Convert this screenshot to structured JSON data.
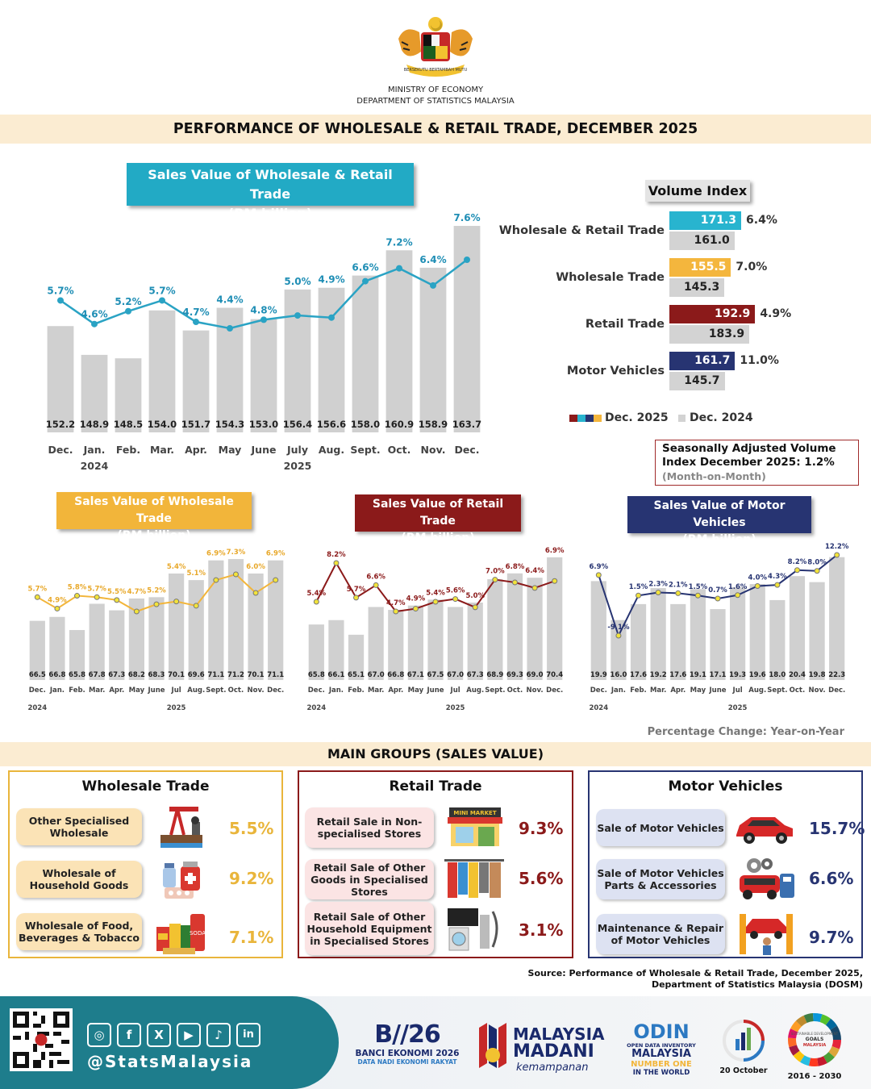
{
  "header": {
    "ministry_line1": "MINISTRY OF ECONOMY",
    "ministry_line2": "DEPARTMENT OF STATISTICS MALAYSIA",
    "title": "PERFORMANCE OF WHOLESALE & RETAIL TRADE, DECEMBER 2025",
    "crest": "malaysia-coat-of-arms"
  },
  "main_chart": {
    "title_line1": "Sales Value of Wholesale & Retail Trade",
    "title_line2": "(RM billion)",
    "year_labels": [
      {
        "label": "2024",
        "under": 1
      },
      {
        "label": "2025",
        "under": 7
      }
    ]
  },
  "small_charts": {
    "wholesale": {
      "title_line1": "Sales Value of Wholesale Trade",
      "title_line2": "(RM billion)"
    },
    "retail": {
      "title_line1": "Sales Value of Retail Trade",
      "title_line2": "(RM billion)"
    },
    "motor": {
      "title_line1": "Sales Value of Motor Vehicles",
      "title_line2": "(RM billion)"
    },
    "year_2024": "2024",
    "year_2025": "2025"
  },
  "chart_data": [
    {
      "type": "bar",
      "name": "main",
      "categories": [
        "Dec.",
        "Jan.",
        "Feb.",
        "Mar.",
        "Apr.",
        "May",
        "June",
        "July",
        "Aug.",
        "Sept.",
        "Oct.",
        "Nov.",
        "Dec."
      ],
      "values": [
        152.2,
        148.9,
        148.5,
        154.0,
        151.7,
        154.3,
        153.0,
        156.4,
        156.6,
        158.0,
        160.9,
        158.9,
        163.7
      ],
      "values_label": [
        "152.2",
        "148.9",
        "148.5",
        "154.0",
        "151.7",
        "154.3",
        "153.0",
        "156.4",
        "156.6",
        "158.0",
        "160.9",
        "158.9",
        "163.7"
      ],
      "line": {
        "values": [
          5.7,
          4.6,
          5.2,
          5.7,
          4.7,
          4.4,
          4.8,
          5.0,
          4.9,
          6.6,
          7.2,
          6.4,
          7.6
        ],
        "labels": [
          "5.7%",
          "4.6%",
          "5.2%",
          "5.7%",
          "4.7%",
          "4.4%",
          "4.8%",
          "5.0%",
          "4.9%",
          "6.6%",
          "7.2%",
          "6.4%",
          "7.6%"
        ]
      },
      "ylim": [
        140,
        165
      ],
      "colors": {
        "bar": "#d0d0d0",
        "line": "#2aa3c4",
        "label": "#1f8eb5"
      }
    },
    {
      "type": "bar",
      "name": "wholesale",
      "categories": [
        "Dec.",
        "Jan.",
        "Feb.",
        "Mar.",
        "Apr.",
        "May",
        "June",
        "Jul",
        "Aug.",
        "Sept.",
        "Oct.",
        "Nov.",
        "Dec."
      ],
      "values": [
        66.5,
        66.8,
        65.8,
        67.8,
        67.3,
        68.2,
        68.3,
        70.1,
        69.6,
        71.1,
        71.2,
        70.1,
        71.1
      ],
      "values_label": [
        "66.5",
        "66.8",
        "65.8",
        "67.8",
        "67.3",
        "68.2",
        "68.3",
        "70.1",
        "69.6",
        "71.1",
        "71.2",
        "70.1",
        "71.1"
      ],
      "line": {
        "values": [
          5.7,
          4.9,
          5.8,
          5.7,
          5.5,
          4.7,
          5.2,
          5.4,
          5.1,
          6.9,
          7.3,
          6.0,
          6.9
        ],
        "labels": [
          "5.7%",
          "4.9%",
          "5.8%",
          "5.7%",
          "5.5%",
          "4.7%",
          "5.2%",
          "5.4%",
          "5.1%",
          "6.9%",
          "7.3%",
          "6.0%",
          "6.9%"
        ]
      },
      "ylim": [
        62,
        72
      ],
      "colors": {
        "bar": "#d0d0d0",
        "line": "#f2b53a",
        "label": "#e8a82a"
      }
    },
    {
      "type": "bar",
      "name": "retail",
      "categories": [
        "Dec.",
        "Jan.",
        "Feb.",
        "Mar.",
        "Apr.",
        "May",
        "June",
        "Jul",
        "Aug.",
        "Sept.",
        "Oct.",
        "Nov.",
        "Dec."
      ],
      "values": [
        65.8,
        66.1,
        65.1,
        67.0,
        66.8,
        67.1,
        67.5,
        67.0,
        67.3,
        68.9,
        69.3,
        69.0,
        70.4
      ],
      "values_label": [
        "65.8",
        "66.1",
        "65.1",
        "67.0",
        "66.8",
        "67.1",
        "67.5",
        "67.0",
        "67.3",
        "68.9",
        "69.3",
        "69.0",
        "70.4"
      ],
      "line": {
        "values": [
          5.4,
          8.2,
          5.7,
          6.6,
          4.7,
          4.9,
          5.4,
          5.6,
          5.0,
          7.0,
          6.8,
          6.4,
          6.9
        ],
        "labels": [
          "5.4%",
          "8.2%",
          "5.7%",
          "6.6%",
          "4.7%",
          "4.9%",
          "5.4%",
          "5.6%",
          "5.0%",
          "7.0%",
          "6.8%",
          "6.4%",
          "6.9%"
        ]
      },
      "ylim": [
        62,
        71
      ],
      "colors": {
        "bar": "#d0d0d0",
        "line": "#8b1a1a",
        "label": "#8b1a1a"
      }
    },
    {
      "type": "bar",
      "name": "motor",
      "categories": [
        "Dec.",
        "Jan.",
        "Feb.",
        "Mar.",
        "Apr.",
        "May",
        "June",
        "Jul",
        "Aug.",
        "Sept.",
        "Oct.",
        "Nov.",
        "Dec."
      ],
      "values": [
        19.9,
        16.0,
        17.6,
        19.2,
        17.6,
        19.1,
        17.1,
        19.3,
        19.6,
        18.0,
        20.4,
        19.8,
        22.3
      ],
      "values_label": [
        "19.9",
        "16.0",
        "17.6",
        "19.2",
        "17.6",
        "19.1",
        "17.1",
        "19.3",
        "19.6",
        "18.0",
        "20.4",
        "19.8",
        "22.3"
      ],
      "line": {
        "values": [
          6.9,
          -9.1,
          1.5,
          2.3,
          2.1,
          1.5,
          0.7,
          1.6,
          4.0,
          4.3,
          8.2,
          8.0,
          12.2
        ],
        "labels": [
          "6.9%",
          "-9.1%",
          "1.5%",
          "2.3%",
          "2.1%",
          "1.5%",
          "0.7%",
          "1.6%",
          "4.0%",
          "4.3%",
          "8.2%",
          "8.0%",
          "12.2%"
        ]
      },
      "ylim": [
        10,
        23
      ],
      "colors": {
        "bar": "#d0d0d0",
        "line": "#273472",
        "label": "#273472"
      }
    },
    {
      "type": "bar",
      "name": "volume_index",
      "title": "Volume Index",
      "categories": [
        "Wholesale & Retail Trade",
        "Wholesale Trade",
        "Retail Trade",
        "Motor Vehicles"
      ],
      "series": [
        {
          "name": "Dec. 2025",
          "values": [
            171.3,
            155.5,
            192.9,
            161.7
          ]
        },
        {
          "name": "Dec. 2024",
          "values": [
            161.0,
            145.3,
            183.9,
            145.7
          ]
        }
      ],
      "values_label_2025": [
        "171.3",
        "155.5",
        "192.9",
        "161.7"
      ],
      "values_label_2024": [
        "161.0",
        "145.3",
        "183.9",
        "145.7"
      ],
      "pct": [
        "6.4%",
        "7.0%",
        "4.9%",
        "11.0%"
      ],
      "colors_2025": [
        "#28b4cf",
        "#f4b63d",
        "#8b1a1a",
        "#273472"
      ],
      "color_2024": "#d3d3d3"
    }
  ],
  "volume_index": {
    "title": "Volume Index",
    "legend_2025": "Dec. 2025",
    "legend_2024": "Dec. 2024"
  },
  "seasonally_adjusted": {
    "line1": "Seasonally Adjusted Volume",
    "line2": "Index December 2025: 1.2%",
    "line3": "(Month-on-Month)"
  },
  "pct_note": "Percentage Change: Year-on-Year",
  "main_groups": {
    "title": "MAIN GROUPS (SALES VALUE)",
    "wholesale": {
      "title": "Wholesale Trade",
      "color": "#e9b53b",
      "items": [
        {
          "label": "Other Specialised Wholesale",
          "pct": "5.5%",
          "icon": "oil-pump-icon"
        },
        {
          "label": "Wholesale of Household Goods",
          "pct": "9.2%",
          "icon": "medicine-icon"
        },
        {
          "label": "Wholesale of Food, Beverages & Tobacco",
          "pct": "7.1%",
          "icon": "canned-food-icon"
        }
      ]
    },
    "retail": {
      "title": "Retail Trade",
      "color": "#8b1a1a",
      "items": [
        {
          "label": "Retail Sale in Non-specialised Stores",
          "pct": "9.3%",
          "icon": "mini-market-icon",
          "sign": "MINI MARKET"
        },
        {
          "label": "Retail Sale of Other Goods in Specialised Stores",
          "pct": "5.6%",
          "icon": "clothes-rack-icon"
        },
        {
          "label": "Retail Sale of Other Household Equipment in Specialised Stores",
          "pct": "3.1%",
          "icon": "appliances-icon"
        }
      ]
    },
    "motor": {
      "title": "Motor Vehicles",
      "color": "#273472",
      "items": [
        {
          "label": "Sale of Motor Vehicles",
          "pct": "15.7%",
          "icon": "car-icon"
        },
        {
          "label": "Sale of Motor Vehicles Parts & Accessories",
          "pct": "6.6%",
          "icon": "car-parts-icon"
        },
        {
          "label": "Maintenance & Repair of Motor Vehicles",
          "pct": "9.7%",
          "icon": "car-lift-icon"
        }
      ]
    }
  },
  "source": {
    "line1": "Source: Performance of Wholesale & Retail Trade, December 2025,",
    "line2": "Department of Statistics Malaysia (DOSM)"
  },
  "footer": {
    "handle": "@StatsMalaysia",
    "banci_line1": "BANCI EKONOMI 2026",
    "banci_line2": "DATA NADI EKONOMI RAKYAT",
    "madani_line1": "MALAYSIA",
    "madani_line2": "MADANI",
    "madani_line3": "kemampanan",
    "odin_line1": "OPEN DATA INVENTORY",
    "odin_line2": "MALAYSIA",
    "odin_line3": "NUMBER ONE",
    "odin_line4": "IN THE WORLD",
    "stats_day": "20 October",
    "sdg_line1": "SUSTAINABLE DEVELOPMENT",
    "sdg_line2": "GOALS",
    "sdg_line3": "MALAYSIA",
    "sdg_years": "2016 - 2030"
  }
}
